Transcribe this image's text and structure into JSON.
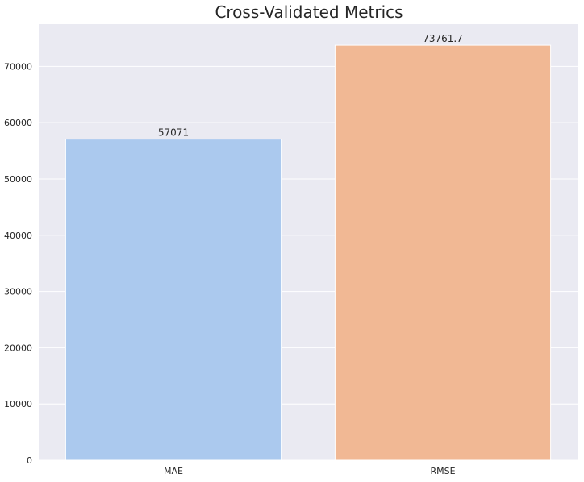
{
  "chart_data": {
    "type": "bar",
    "title": "Cross-Validated Metrics",
    "xlabel": "",
    "ylabel": "",
    "categories": [
      "MAE",
      "RMSE"
    ],
    "values": [
      57071,
      73761.7
    ],
    "value_labels": [
      "57071",
      "73761.7"
    ],
    "bar_colors": [
      "#abc9ee",
      "#f1b894"
    ],
    "ylim": [
      0,
      77500
    ],
    "yticks": [
      0,
      10000,
      20000,
      30000,
      40000,
      50000,
      60000,
      70000
    ],
    "ytick_labels": [
      "0",
      "10000",
      "20000",
      "30000",
      "40000",
      "50000",
      "60000",
      "70000"
    ],
    "grid": true,
    "background_color": "#eaeaf2",
    "grid_color": "#ffffff"
  }
}
